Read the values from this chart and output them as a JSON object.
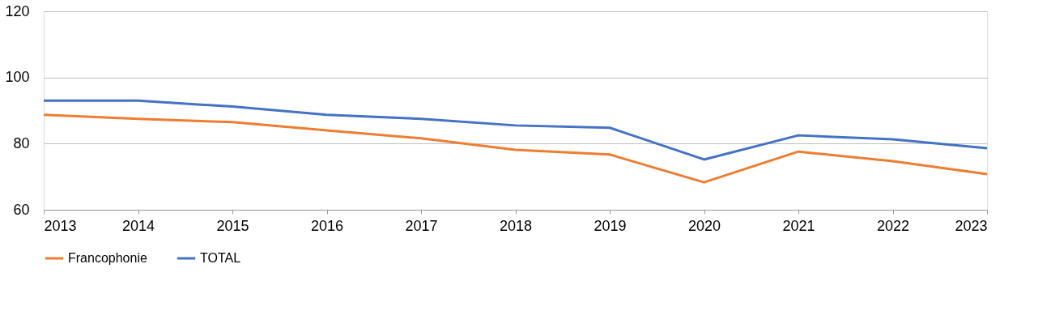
{
  "chart_data": {
    "type": "line",
    "x": [
      2013,
      2014,
      2015,
      2016,
      2017,
      2018,
      2019,
      2020,
      2021,
      2022,
      2023
    ],
    "series": [
      {
        "name": "Francophonie",
        "color": "#ed7d31",
        "values": [
          88.7,
          87.5,
          86.5,
          84,
          81.6,
          78.1,
          76.7,
          68.3,
          77.6,
          74.7,
          70.8
        ]
      },
      {
        "name": "TOTAL",
        "color": "#4472c4",
        "values": [
          93,
          93,
          91.2,
          88.7,
          87.5,
          85.5,
          84.8,
          75.2,
          82.5,
          81.3,
          78.6
        ]
      }
    ],
    "xlim": [
      2013,
      2023
    ],
    "xticks": [
      2013,
      2014,
      2015,
      2016,
      2017,
      2018,
      2019,
      2020,
      2021,
      2022,
      2023
    ],
    "ylim": [
      60,
      120
    ],
    "yticks": [
      60,
      80,
      100,
      120
    ],
    "grid": "y",
    "legend": "bottom",
    "marker": "none",
    "line_style": "solid"
  }
}
